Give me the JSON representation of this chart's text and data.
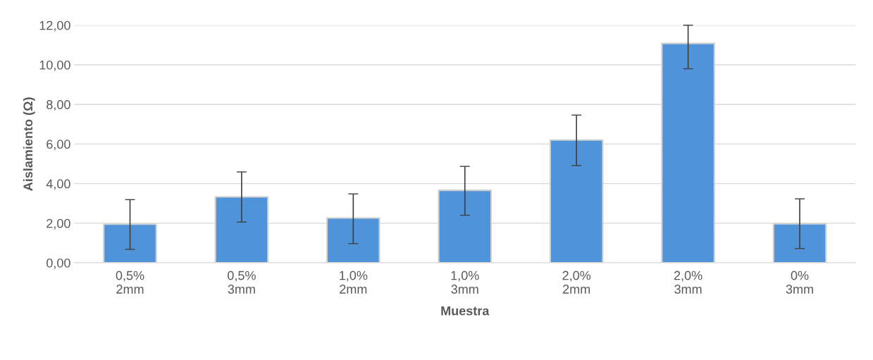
{
  "chart_data": {
    "type": "bar",
    "xlabel": "Muestra",
    "ylabel": "Aislamiento (Ω)",
    "categories": [
      "0,5%\n2mm",
      "0,5%\n3mm",
      "1,0%\n2mm",
      "1,0%\n3mm",
      "2,0%\n2mm",
      "2,0%\n3mm",
      "0%\n3mm"
    ],
    "values": [
      1.95,
      3.33,
      2.26,
      3.66,
      6.2,
      11.08,
      1.97
    ],
    "errors": [
      [
        0.68,
        3.19
      ],
      [
        2.06,
        4.59
      ],
      [
        0.97,
        3.48
      ],
      [
        2.4,
        4.87
      ],
      [
        4.91,
        7.46
      ],
      [
        9.8,
        12.0
      ],
      [
        0.72,
        3.23
      ]
    ],
    "color": "#4f94d8",
    "ylim": [
      0,
      12
    ],
    "yticks": [
      {
        "value": 0,
        "label": "0,00"
      },
      {
        "value": 2,
        "label": "2,00"
      },
      {
        "value": 4,
        "label": "4,00"
      },
      {
        "value": 6,
        "label": "6,00"
      },
      {
        "value": 8,
        "label": "8,00"
      },
      {
        "value": 10,
        "label": "10,00"
      },
      {
        "value": 12,
        "label": "12,00"
      }
    ],
    "grid": "y"
  }
}
